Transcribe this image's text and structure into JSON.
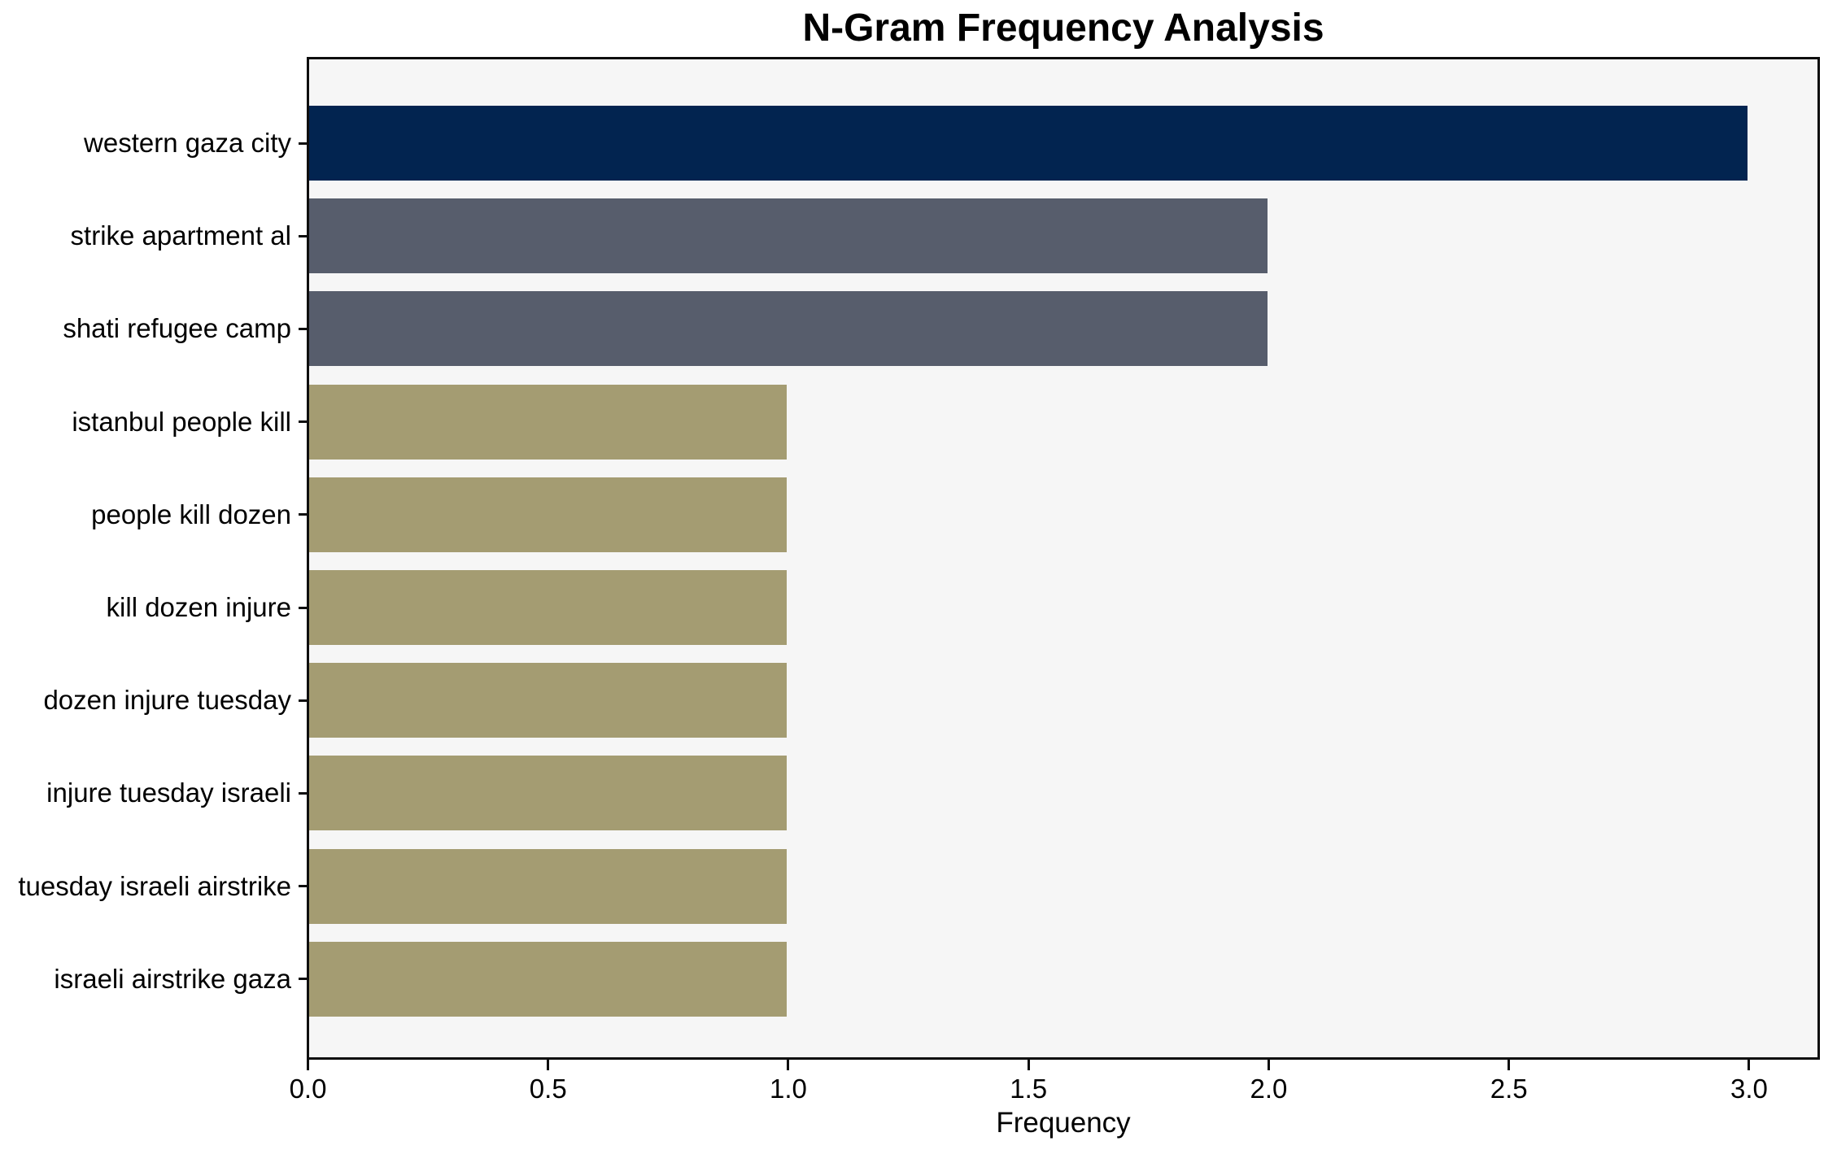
{
  "chart_data": {
    "type": "bar",
    "orientation": "horizontal",
    "title": "N-Gram Frequency Analysis",
    "xlabel": "Frequency",
    "ylabel": "",
    "categories": [
      "western gaza city",
      "strike apartment al",
      "shati refugee camp",
      "istanbul people kill",
      "people kill dozen",
      "kill dozen injure",
      "dozen injure tuesday",
      "injure tuesday israeli",
      "tuesday israeli airstrike",
      "israeli airstrike gaza"
    ],
    "values": [
      3,
      2,
      2,
      1,
      1,
      1,
      1,
      1,
      1,
      1
    ],
    "bar_colors": [
      "#022450",
      "#575d6c",
      "#575d6c",
      "#a49c72",
      "#a49c72",
      "#a49c72",
      "#a49c72",
      "#a49c72",
      "#a49c72",
      "#a49c72"
    ],
    "xlim": [
      0,
      3.15
    ],
    "x_ticks": [
      0.0,
      0.5,
      1.0,
      1.5,
      2.0,
      2.5,
      3.0
    ],
    "x_tick_labels": [
      "0.0",
      "0.5",
      "1.0",
      "1.5",
      "2.0",
      "2.5",
      "3.0"
    ],
    "grid": false,
    "legend": null,
    "colors": {
      "plot_background": "#f6f6f6",
      "figure_background": "#ffffff",
      "axis": "#0e0e0e",
      "text": "#000000"
    }
  }
}
